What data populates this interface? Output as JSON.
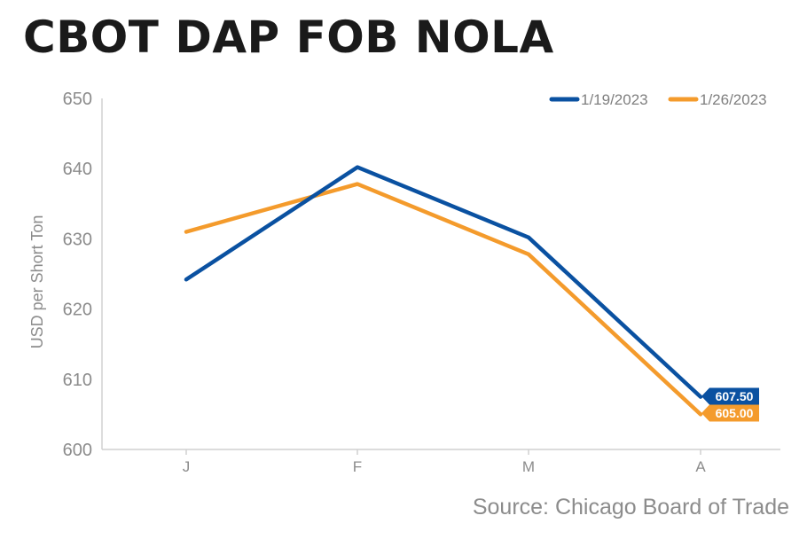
{
  "title": "CBOT DAP FOB NOLA",
  "source": "Source: Chicago Board of Trade",
  "chart_data": {
    "type": "line",
    "title": "CBOT DAP FOB NOLA",
    "ylabel": "USD per Short Ton",
    "xlabel": "",
    "categories": [
      "J",
      "F",
      "M",
      "A"
    ],
    "ylim": [
      600,
      650
    ],
    "yticks": [
      600,
      610,
      620,
      630,
      640,
      650
    ],
    "grid": false,
    "legend_position": "top-right",
    "series": [
      {
        "name": "1/19/2023",
        "color": "#0a51a1",
        "values": [
          624.2,
          640.2,
          630.2,
          607.5
        ],
        "end_label": "607.50"
      },
      {
        "name": "1/26/2023",
        "color": "#f49b2c",
        "values": [
          631.0,
          637.8,
          627.8,
          605.0
        ],
        "end_label": "605.00"
      }
    ]
  }
}
